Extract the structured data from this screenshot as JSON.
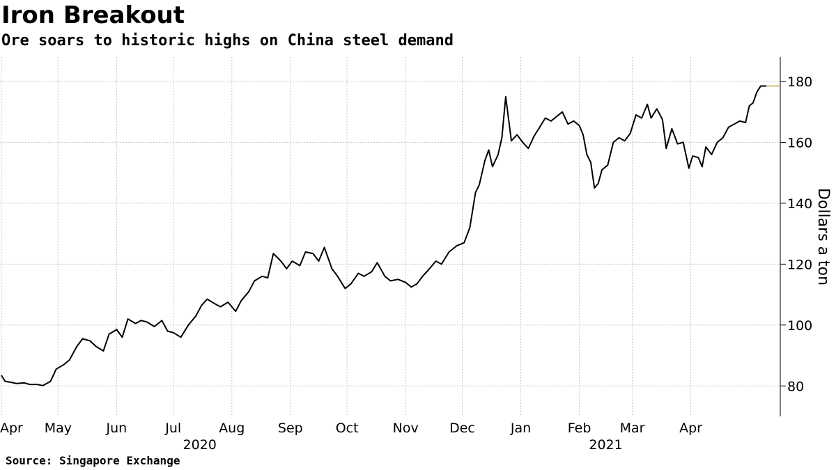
{
  "header": {
    "title": "Iron Breakout",
    "subtitle": "Ore soars to historic highs on China steel demand"
  },
  "footer": {
    "source": "Source: Singapore Exchange"
  },
  "chart_data": {
    "type": "line",
    "title": "Iron Breakout",
    "subtitle": "Ore soars to historic highs on China steel demand",
    "ylabel": "Dollars a ton",
    "xlabel": "",
    "ylim": [
      70,
      188
    ],
    "yticks": [
      80,
      100,
      120,
      140,
      160,
      180
    ],
    "grid": true,
    "y_axis_position": "right",
    "line_color": "#000000",
    "last_value_marker_color": "#c8a23a",
    "month_ticks": [
      {
        "label": "Apr",
        "date": "2020-04-01"
      },
      {
        "label": "May",
        "date": "2020-05-01"
      },
      {
        "label": "Jun",
        "date": "2020-06-01"
      },
      {
        "label": "Jul",
        "date": "2020-07-01"
      },
      {
        "label": "Aug",
        "date": "2020-08-01"
      },
      {
        "label": "Sep",
        "date": "2020-09-01"
      },
      {
        "label": "Oct",
        "date": "2020-10-01"
      },
      {
        "label": "Nov",
        "date": "2020-11-01"
      },
      {
        "label": "Dec",
        "date": "2020-12-01"
      },
      {
        "label": "Jan",
        "date": "2021-01-01"
      },
      {
        "label": "Feb",
        "date": "2021-02-01"
      },
      {
        "label": "Mar",
        "date": "2021-03-01"
      },
      {
        "label": "Apr",
        "date": "2021-04-01"
      }
    ],
    "year_labels": [
      {
        "label": "2020",
        "date": "2020-07-15"
      },
      {
        "label": "2021",
        "date": "2021-02-15"
      }
    ],
    "series": [
      {
        "points": [
          [
            "2020-04-01",
            83.5
          ],
          [
            "2020-04-03",
            81.5
          ],
          [
            "2020-04-06",
            81.2
          ],
          [
            "2020-04-09",
            80.8
          ],
          [
            "2020-04-13",
            81.0
          ],
          [
            "2020-04-16",
            80.5
          ],
          [
            "2020-04-20",
            80.5
          ],
          [
            "2020-04-23",
            80.1
          ],
          [
            "2020-04-27",
            81.5
          ],
          [
            "2020-04-30",
            85.5
          ],
          [
            "2020-05-04",
            87.0
          ],
          [
            "2020-05-07",
            88.5
          ],
          [
            "2020-05-11",
            93.0
          ],
          [
            "2020-05-14",
            95.5
          ],
          [
            "2020-05-18",
            94.8
          ],
          [
            "2020-05-21",
            93.0
          ],
          [
            "2020-05-25",
            91.5
          ],
          [
            "2020-05-28",
            97.0
          ],
          [
            "2020-06-01",
            98.5
          ],
          [
            "2020-06-04",
            96.0
          ],
          [
            "2020-06-07",
            102.0
          ],
          [
            "2020-06-11",
            100.5
          ],
          [
            "2020-06-14",
            101.5
          ],
          [
            "2020-06-17",
            101.0
          ],
          [
            "2020-06-21",
            99.5
          ],
          [
            "2020-06-25",
            101.5
          ],
          [
            "2020-06-28",
            98.0
          ],
          [
            "2020-07-01",
            97.5
          ],
          [
            "2020-07-05",
            96.0
          ],
          [
            "2020-07-09",
            100.0
          ],
          [
            "2020-07-13",
            103.0
          ],
          [
            "2020-07-16",
            106.5
          ],
          [
            "2020-07-19",
            108.5
          ],
          [
            "2020-07-23",
            107.0
          ],
          [
            "2020-07-26",
            106.0
          ],
          [
            "2020-07-30",
            107.5
          ],
          [
            "2020-08-03",
            104.5
          ],
          [
            "2020-08-06",
            108.0
          ],
          [
            "2020-08-10",
            111.0
          ],
          [
            "2020-08-13",
            114.5
          ],
          [
            "2020-08-17",
            116.0
          ],
          [
            "2020-08-20",
            115.5
          ],
          [
            "2020-08-23",
            123.5
          ],
          [
            "2020-08-27",
            121.0
          ],
          [
            "2020-08-30",
            118.5
          ],
          [
            "2020-09-02",
            121.0
          ],
          [
            "2020-09-06",
            119.5
          ],
          [
            "2020-09-09",
            124.0
          ],
          [
            "2020-09-13",
            123.5
          ],
          [
            "2020-09-16",
            121.0
          ],
          [
            "2020-09-19",
            125.5
          ],
          [
            "2020-09-23",
            118.5
          ],
          [
            "2020-09-26",
            116.0
          ],
          [
            "2020-09-30",
            112.0
          ],
          [
            "2020-10-03",
            113.5
          ],
          [
            "2020-10-07",
            117.0
          ],
          [
            "2020-10-10",
            116.0
          ],
          [
            "2020-10-14",
            117.5
          ],
          [
            "2020-10-17",
            120.5
          ],
          [
            "2020-10-21",
            116.0
          ],
          [
            "2020-10-24",
            114.5
          ],
          [
            "2020-10-28",
            115.0
          ],
          [
            "2020-11-01",
            114.0
          ],
          [
            "2020-11-04",
            112.5
          ],
          [
            "2020-11-07",
            113.5
          ],
          [
            "2020-11-10",
            116.0
          ],
          [
            "2020-11-13",
            118.0
          ],
          [
            "2020-11-17",
            121.0
          ],
          [
            "2020-11-20",
            120.0
          ],
          [
            "2020-11-24",
            124.0
          ],
          [
            "2020-11-28",
            126.0
          ],
          [
            "2020-12-02",
            127.0
          ],
          [
            "2020-12-05",
            132.0
          ],
          [
            "2020-12-08",
            143.5
          ],
          [
            "2020-12-10",
            146.0
          ],
          [
            "2020-12-13",
            154.0
          ],
          [
            "2020-12-15",
            157.5
          ],
          [
            "2020-12-17",
            152.0
          ],
          [
            "2020-12-20",
            156.0
          ],
          [
            "2020-12-22",
            161.5
          ],
          [
            "2020-12-24",
            175.0
          ],
          [
            "2020-12-27",
            160.5
          ],
          [
            "2020-12-30",
            162.5
          ],
          [
            "2021-01-02",
            160.0
          ],
          [
            "2021-01-05",
            158.0
          ],
          [
            "2021-01-08",
            162.0
          ],
          [
            "2021-01-11",
            165.0
          ],
          [
            "2021-01-14",
            168.0
          ],
          [
            "2021-01-17",
            167.0
          ],
          [
            "2021-01-20",
            168.5
          ],
          [
            "2021-01-23",
            170.0
          ],
          [
            "2021-01-26",
            166.0
          ],
          [
            "2021-01-29",
            167.0
          ],
          [
            "2021-02-01",
            165.5
          ],
          [
            "2021-02-03",
            162.5
          ],
          [
            "2021-02-05",
            156.0
          ],
          [
            "2021-02-07",
            153.5
          ],
          [
            "2021-02-09",
            145.0
          ],
          [
            "2021-02-11",
            146.5
          ],
          [
            "2021-02-13",
            151.0
          ],
          [
            "2021-02-16",
            152.5
          ],
          [
            "2021-02-19",
            160.0
          ],
          [
            "2021-02-22",
            161.5
          ],
          [
            "2021-02-25",
            160.5
          ],
          [
            "2021-02-28",
            163.0
          ],
          [
            "2021-03-03",
            169.0
          ],
          [
            "2021-03-06",
            168.0
          ],
          [
            "2021-03-09",
            172.5
          ],
          [
            "2021-03-11",
            168.0
          ],
          [
            "2021-03-14",
            171.0
          ],
          [
            "2021-03-17",
            167.5
          ],
          [
            "2021-03-19",
            158.0
          ],
          [
            "2021-03-22",
            164.5
          ],
          [
            "2021-03-25",
            159.5
          ],
          [
            "2021-03-28",
            160.0
          ],
          [
            "2021-03-31",
            151.5
          ],
          [
            "2021-04-02",
            155.5
          ],
          [
            "2021-04-05",
            155.0
          ],
          [
            "2021-04-07",
            152.0
          ],
          [
            "2021-04-09",
            158.5
          ],
          [
            "2021-04-12",
            156.0
          ],
          [
            "2021-04-15",
            160.0
          ],
          [
            "2021-04-18",
            161.5
          ],
          [
            "2021-04-21",
            165.0
          ],
          [
            "2021-04-24",
            166.0
          ],
          [
            "2021-04-27",
            167.0
          ],
          [
            "2021-04-30",
            166.5
          ],
          [
            "2021-05-02",
            172.0
          ],
          [
            "2021-05-04",
            173.0
          ],
          [
            "2021-05-06",
            176.5
          ],
          [
            "2021-05-08",
            178.5
          ],
          [
            "2021-05-11",
            178.5
          ]
        ]
      }
    ]
  }
}
